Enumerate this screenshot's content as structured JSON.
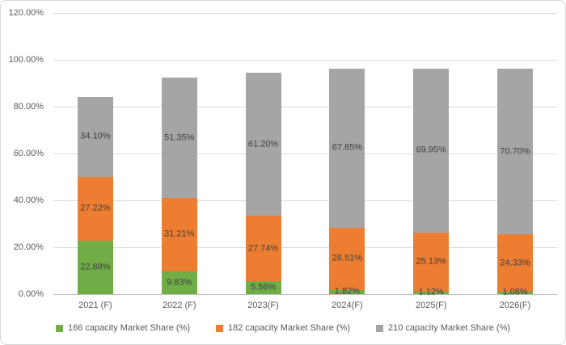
{
  "chart": {
    "background": "#FFFFFF",
    "border_color": "#D7D7D7",
    "gridline_color": "#D9D9D9",
    "axis_line_color": "#BFBFBF",
    "tick_label_color": "#595959",
    "data_label_color": "#404040"
  },
  "chart_data": {
    "type": "bar",
    "stacked": true,
    "title": "",
    "xlabel": "",
    "ylabel": "",
    "categories": [
      "2021 (F)",
      "2022 (F)",
      "2023(F)",
      "2024(F)",
      "2025(F)",
      "2026(F)"
    ],
    "series": [
      {
        "name": "166 capacity Market Share (%)",
        "color": "#70AD47",
        "values": [
          22.88,
          9.83,
          5.56,
          1.82,
          1.12,
          1.08
        ],
        "labels": [
          "22.88%",
          "9.83%",
          "5.56%",
          "1.82%",
          "1.12%",
          "1.08%"
        ]
      },
      {
        "name": "182 capacity Market Share (%)",
        "color": "#ED7D31",
        "values": [
          27.22,
          31.21,
          27.74,
          26.51,
          25.13,
          24.33
        ],
        "labels": [
          "27.22%",
          "31.21%",
          "27.74%",
          "26.51%",
          "25.13%",
          "24.33%"
        ]
      },
      {
        "name": "210 capacity Market Share (%)",
        "color": "#A5A5A5",
        "values": [
          34.1,
          51.35,
          61.2,
          67.85,
          69.95,
          70.7
        ],
        "labels": [
          "34.10%",
          "51.35%",
          "61.20%",
          "67.85%",
          "69.95%",
          "70.70%"
        ]
      }
    ],
    "ylim": [
      0,
      120
    ],
    "yticks": [
      {
        "value": 0,
        "label": "0.00%"
      },
      {
        "value": 20,
        "label": "20.00%"
      },
      {
        "value": 40,
        "label": "40.00%"
      },
      {
        "value": 60,
        "label": "60.00%"
      },
      {
        "value": 80,
        "label": "80.00%"
      },
      {
        "value": 100,
        "label": "100.00%"
      },
      {
        "value": 120,
        "label": "120.00%"
      }
    ],
    "grid": true,
    "data_labels": true,
    "legend_position": "bottom"
  }
}
